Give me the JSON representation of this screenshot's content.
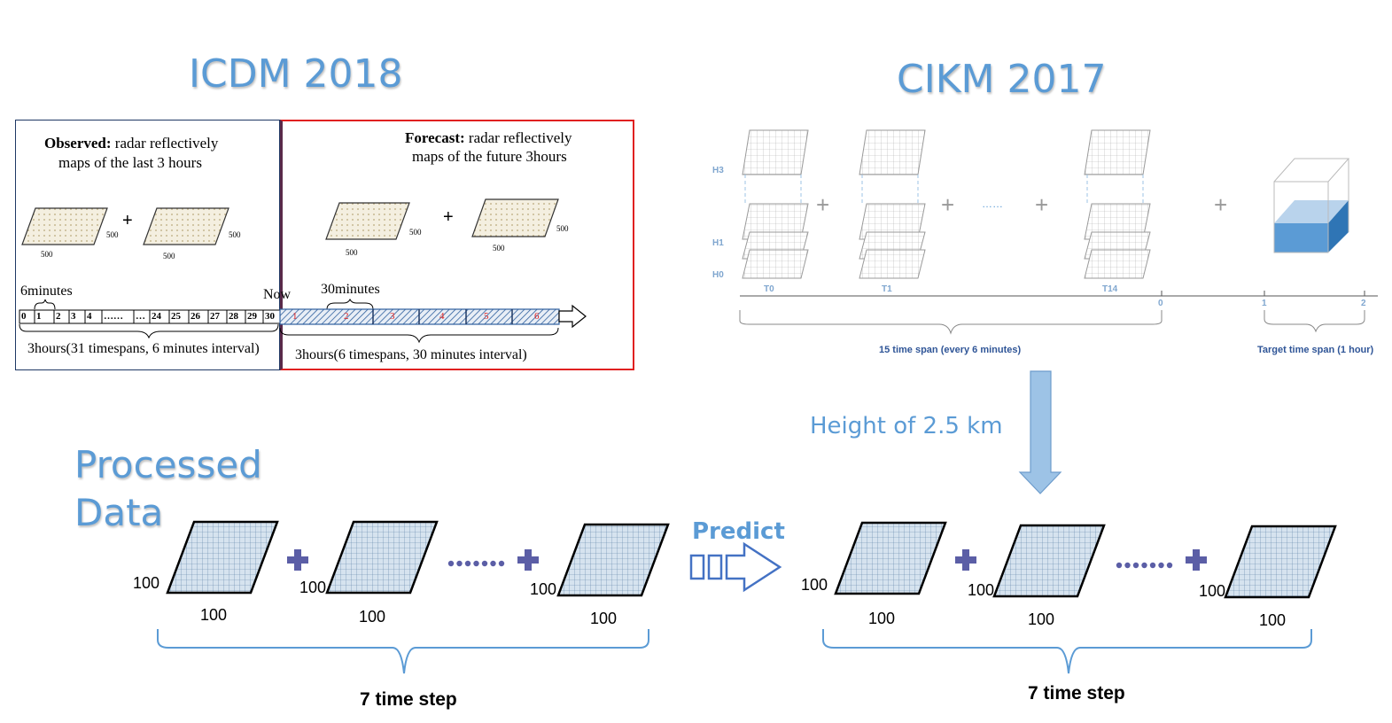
{
  "titles": {
    "icdm": "ICDM 2018",
    "cikm": "CIKM 2017",
    "processed_line1": "Processed",
    "processed_line2": "Data"
  },
  "icdm": {
    "observed_bold": "Observed:",
    "observed_rest": " radar reflectively",
    "observed_line2": "maps of the last 3 hours",
    "forecast_bold": "Forecast:",
    "forecast_rest": "  radar reflectively",
    "forecast_line2": "maps of the future 3hours",
    "dim_500": "500",
    "plus": "+",
    "six_minutes": "6minutes",
    "now": "Now",
    "thirty_minutes": "30minutes",
    "obs_ticks": [
      "0",
      "1",
      "2",
      "3",
      "4",
      "……",
      "…",
      "24",
      "25",
      "26",
      "27",
      "28",
      "29",
      "30"
    ],
    "forecast_ticks": [
      "1",
      "2",
      "3",
      "4",
      "5",
      "6"
    ],
    "obs_span": "3hours(31 timespans, 6 minutes interval)",
    "forecast_span": "3hours(6 timespans, 30 minutes interval)"
  },
  "cikm": {
    "heights": [
      "H3",
      "H1",
      "H0"
    ],
    "time_labels": [
      "T0",
      "T1",
      "T14"
    ],
    "dots": "……",
    "axis_ticks": [
      "0",
      "1",
      "2"
    ],
    "span_left": "15 time span (every 6 minutes)",
    "span_right": "Target time span (1 hour)",
    "height_label": "Height of 2.5 km"
  },
  "processed": {
    "dim": "100",
    "dots": "·······",
    "predict": "Predict",
    "time_step": "7 time step"
  },
  "colors": {
    "blue_title": "#5b9bd5",
    "plus_purple": "#5b5ea6",
    "grid_fill": "#d6e3ef",
    "hatch_blue": "#2e5f9e",
    "red_border": "#e02020",
    "navy_border": "#1f3864"
  }
}
